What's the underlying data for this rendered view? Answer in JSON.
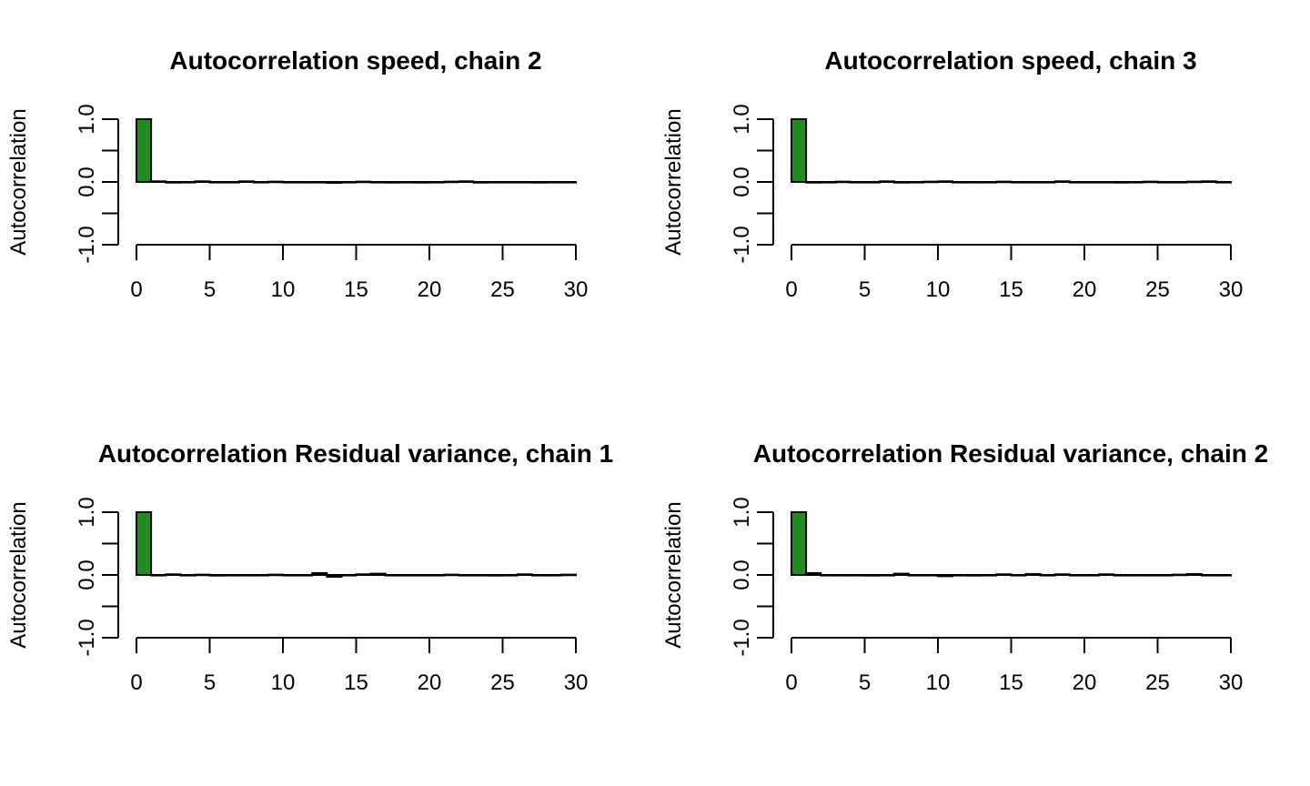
{
  "chart_data": [
    {
      "type": "bar",
      "title": "Autocorrelation speed, chain 2",
      "xlabel": "",
      "ylabel": "Autocorrelation",
      "xlim": [
        0,
        30
      ],
      "ylim": [
        -1,
        1
      ],
      "x_ticks": [
        "0",
        "5",
        "10",
        "15",
        "20",
        "25",
        "30"
      ],
      "y_ticks": [
        "-1.0",
        "",
        "0.0",
        "",
        "1.0"
      ],
      "bar_color": "#228B22",
      "lags": [
        0,
        1,
        2,
        3,
        4,
        5,
        6,
        7,
        8,
        9,
        10,
        11,
        12,
        13,
        14,
        15,
        16,
        17,
        18,
        19,
        20,
        21,
        22,
        23,
        24,
        25,
        26,
        27,
        28,
        29
      ],
      "values": [
        1.0,
        0.01,
        -0.01,
        0.0,
        0.01,
        -0.005,
        0.0,
        0.01,
        0.0,
        0.005,
        0.0,
        0.0,
        0.0,
        -0.015,
        0.0,
        0.005,
        0.0,
        -0.01,
        0.0,
        -0.01,
        0.0,
        0.005,
        0.01,
        -0.01,
        0.0,
        0.0,
        0.0,
        -0.01,
        0.0,
        0.0
      ]
    },
    {
      "type": "bar",
      "title": "Autocorrelation speed, chain 3",
      "xlabel": "",
      "ylabel": "Autocorrelation",
      "xlim": [
        0,
        30
      ],
      "ylim": [
        -1,
        1
      ],
      "x_ticks": [
        "0",
        "5",
        "10",
        "15",
        "20",
        "25",
        "30"
      ],
      "y_ticks": [
        "-1.0",
        "",
        "0.0",
        "",
        "1.0"
      ],
      "bar_color": "#228B22",
      "lags": [
        0,
        1,
        2,
        3,
        4,
        5,
        6,
        7,
        8,
        9,
        10,
        11,
        12,
        13,
        14,
        15,
        16,
        17,
        18,
        19,
        20,
        21,
        22,
        23,
        24,
        25,
        26,
        27,
        28,
        29
      ],
      "values": [
        1.0,
        -0.01,
        0.0,
        0.005,
        0.0,
        -0.005,
        0.01,
        -0.01,
        0.0,
        0.005,
        0.01,
        0.0,
        -0.005,
        0.0,
        0.005,
        0.0,
        -0.005,
        0.0,
        0.01,
        0.0,
        0.0,
        -0.005,
        -0.01,
        0.0,
        0.005,
        0.0,
        -0.005,
        0.005,
        0.01,
        0.0
      ]
    },
    {
      "type": "bar",
      "title": "Autocorrelation Residual variance, chain 1",
      "xlabel": "",
      "ylabel": "Autocorrelation",
      "xlim": [
        0,
        30
      ],
      "ylim": [
        -1,
        1
      ],
      "x_ticks": [
        "0",
        "5",
        "10",
        "15",
        "20",
        "25",
        "30"
      ],
      "y_ticks": [
        "-1.0",
        "",
        "0.0",
        "",
        "1.0"
      ],
      "bar_color": "#228B22",
      "lags": [
        0,
        1,
        2,
        3,
        4,
        5,
        6,
        7,
        8,
        9,
        10,
        11,
        12,
        13,
        14,
        15,
        16,
        17,
        18,
        19,
        20,
        21,
        22,
        23,
        24,
        25,
        26,
        27,
        28,
        29
      ],
      "values": [
        1.0,
        0.0,
        0.01,
        0.0,
        0.005,
        -0.01,
        0.0,
        -0.005,
        0.0,
        0.005,
        0.0,
        0.0,
        0.03,
        -0.03,
        0.0,
        0.01,
        0.02,
        0.0,
        -0.005,
        0.0,
        0.0,
        0.005,
        0.0,
        -0.005,
        -0.01,
        0.0,
        0.01,
        0.0,
        -0.005,
        0.005
      ]
    },
    {
      "type": "bar",
      "title": "Autocorrelation Residual variance, chain 2",
      "xlabel": "",
      "ylabel": "Autocorrelation",
      "xlim": [
        0,
        30
      ],
      "ylim": [
        -1,
        1
      ],
      "x_ticks": [
        "0",
        "5",
        "10",
        "15",
        "20",
        "25",
        "30"
      ],
      "y_ticks": [
        "-1.0",
        "",
        "0.0",
        "",
        "1.0"
      ],
      "bar_color": "#228B22",
      "lags": [
        0,
        1,
        2,
        3,
        4,
        5,
        6,
        7,
        8,
        9,
        10,
        11,
        12,
        13,
        14,
        15,
        16,
        17,
        18,
        19,
        20,
        21,
        22,
        23,
        24,
        25,
        26,
        27,
        28,
        29
      ],
      "values": [
        1.0,
        0.03,
        -0.005,
        0.0,
        0.0,
        -0.01,
        -0.005,
        0.02,
        0.0,
        0.0,
        -0.02,
        0.0,
        -0.01,
        0.0,
        0.01,
        0.0,
        0.015,
        0.0,
        0.01,
        0.0,
        0.0,
        0.01,
        0.0,
        -0.005,
        0.0,
        0.0,
        0.005,
        0.015,
        0.0,
        0.0
      ]
    }
  ]
}
